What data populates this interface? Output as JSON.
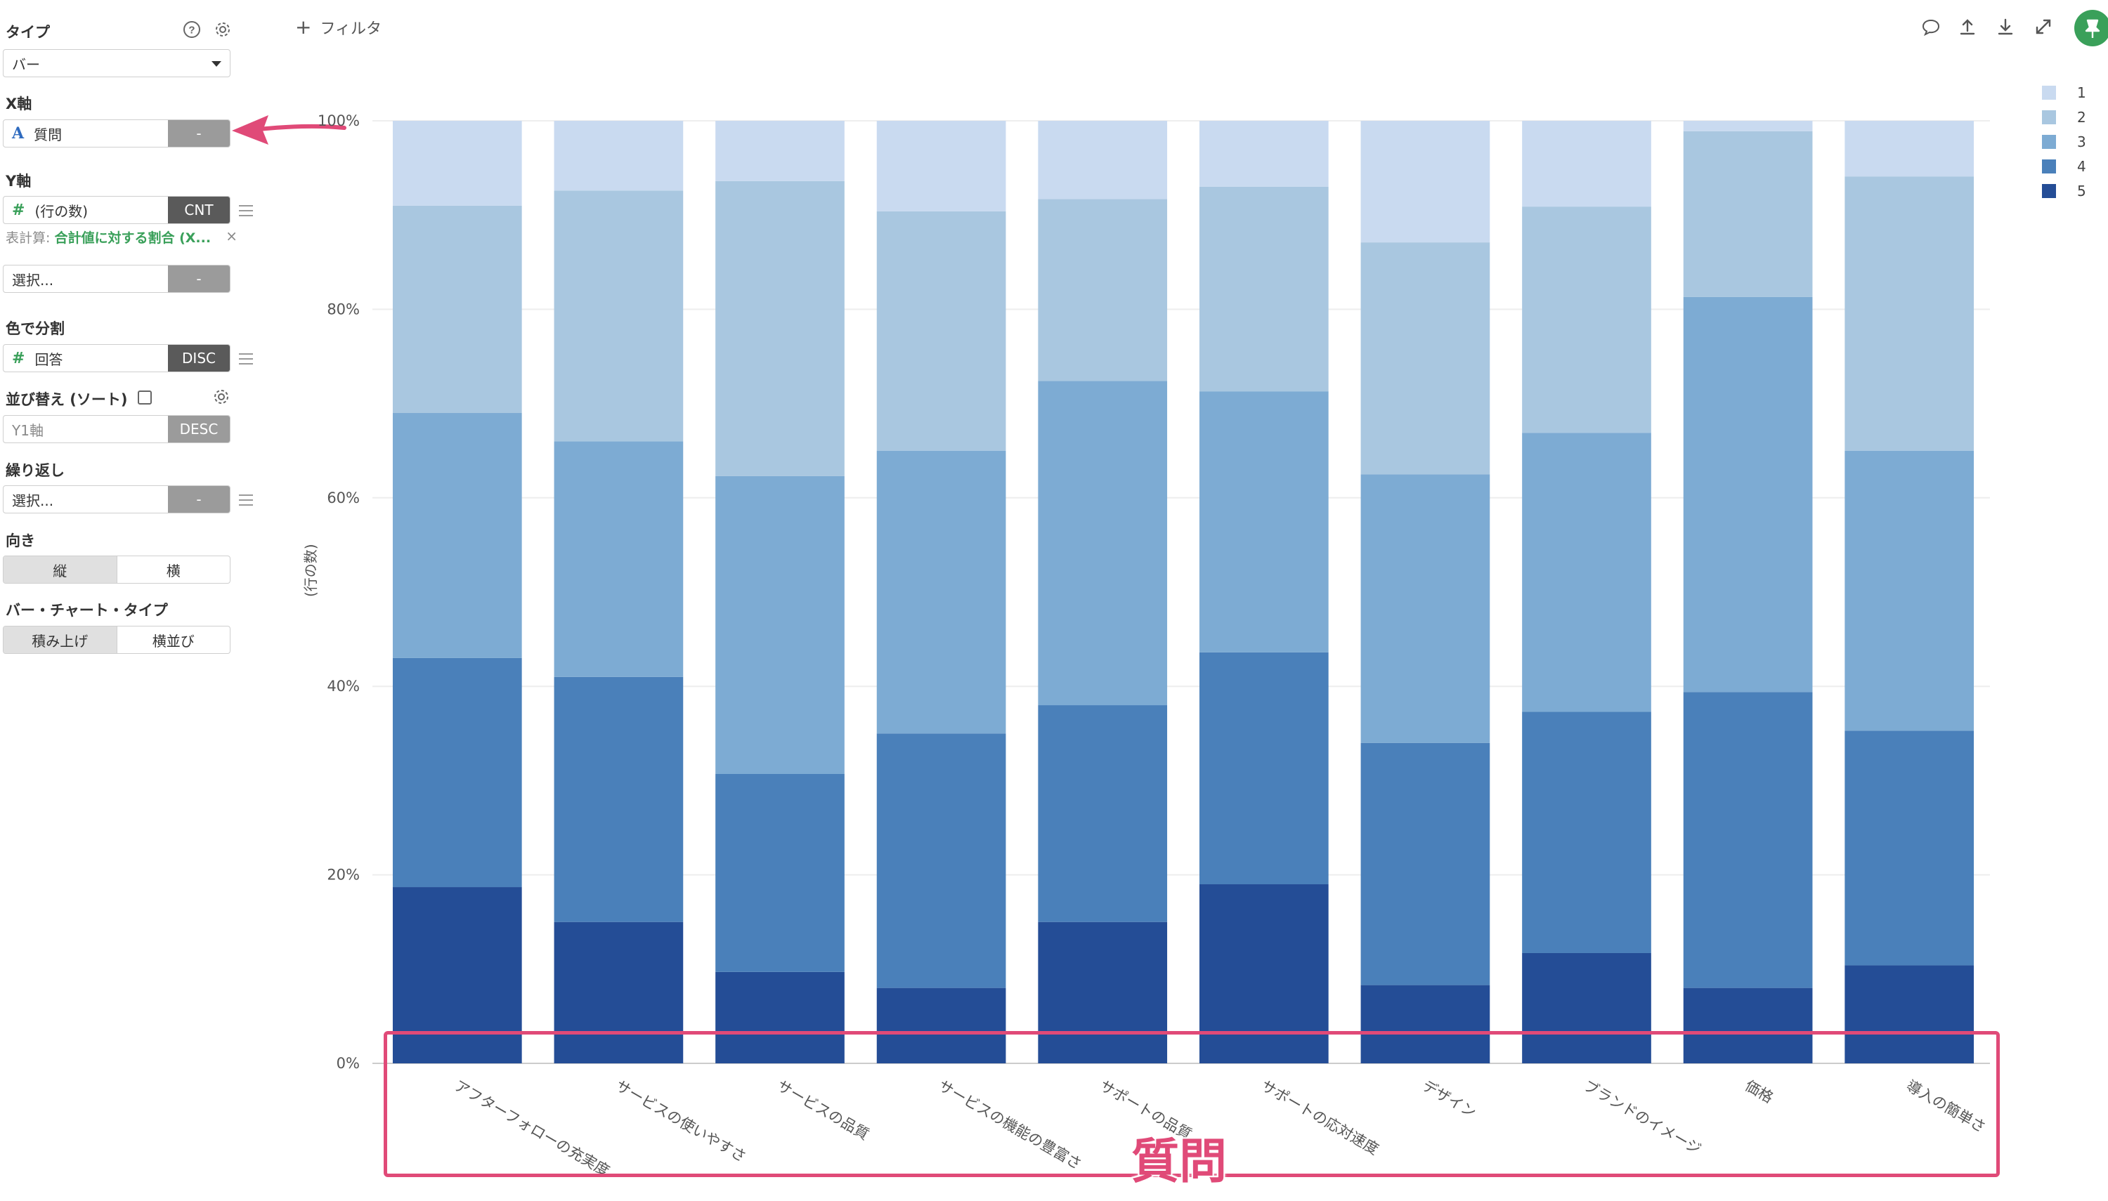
{
  "sidebar": {
    "type_section": {
      "label": "タイプ",
      "value": "バー"
    },
    "x_axis": {
      "label": "X軸",
      "type_icon": "A",
      "field": "質問",
      "agg": "-"
    },
    "y_axis": {
      "label": "Y軸",
      "type_icon": "#",
      "field": "(行の数)",
      "agg": "CNT",
      "calc_label": "表計算:",
      "calc_value": "合計値に対する割合 (X...",
      "clear": "×"
    },
    "y_axis_2": {
      "placeholder": "選択...",
      "agg": "-"
    },
    "color": {
      "label": "色で分割",
      "type_icon": "#",
      "field": "回答",
      "agg": "DISC"
    },
    "sort": {
      "label": "並び替え (ソート)",
      "field": "Y1軸",
      "order": "DESC"
    },
    "repeat": {
      "label": "繰り返し",
      "placeholder": "選択...",
      "agg": "-"
    },
    "orientation": {
      "label": "向き",
      "options": [
        "縦",
        "横"
      ],
      "selected": "縦"
    },
    "bar_type": {
      "label": "バー・チャート・タイプ",
      "options": [
        "積み上げ",
        "横並び"
      ],
      "selected": "積み上げ"
    }
  },
  "toolbar": {
    "filter_label": "フィルタ",
    "icons": [
      "comment-icon",
      "upload-icon",
      "download-icon",
      "expand-icon",
      "pin-icon"
    ]
  },
  "annotation": {
    "label": "質問",
    "color": "#e04a78"
  },
  "chart_data": {
    "type": "bar",
    "stacked": true,
    "ylabel": "(行の数)",
    "ylim": [
      0,
      100
    ],
    "yticks": [
      "0%",
      "20%",
      "40%",
      "60%",
      "80%",
      "100%"
    ],
    "categories": [
      "アフターフォローの充実度",
      "サービスの使いやすさ",
      "サービスの品質",
      "サービスの機能の豊富さ",
      "サポートの品質",
      "サポートの応対速度",
      "デザイン",
      "ブランドのイメージ",
      "価格",
      "導入の簡単さ"
    ],
    "series": [
      {
        "name": "5",
        "color": "#244d96",
        "values": [
          18.7,
          15.0,
          9.7,
          8.0,
          15.0,
          19.0,
          8.3,
          11.7,
          8.0,
          10.4
        ]
      },
      {
        "name": "4",
        "color": "#4a80ba",
        "values": [
          24.3,
          26.0,
          21.0,
          27.0,
          23.0,
          24.6,
          25.7,
          25.6,
          31.4,
          24.9
        ]
      },
      {
        "name": "3",
        "color": "#7dabd3",
        "values": [
          26.0,
          25.0,
          31.6,
          30.0,
          34.4,
          27.7,
          28.5,
          29.6,
          41.9,
          29.7
        ]
      },
      {
        "name": "2",
        "color": "#a9c7e0",
        "values": [
          22.0,
          26.6,
          31.3,
          25.4,
          19.3,
          21.7,
          24.6,
          24.0,
          17.6,
          29.1
        ]
      },
      {
        "name": "1",
        "color": "#c9daf0",
        "values": [
          9.0,
          7.4,
          6.4,
          9.6,
          8.3,
          7.0,
          12.9,
          9.1,
          1.1,
          5.9
        ]
      }
    ],
    "legend": {
      "position": "top-right",
      "entries": [
        "1",
        "2",
        "3",
        "4",
        "5"
      ]
    },
    "grid": true
  }
}
